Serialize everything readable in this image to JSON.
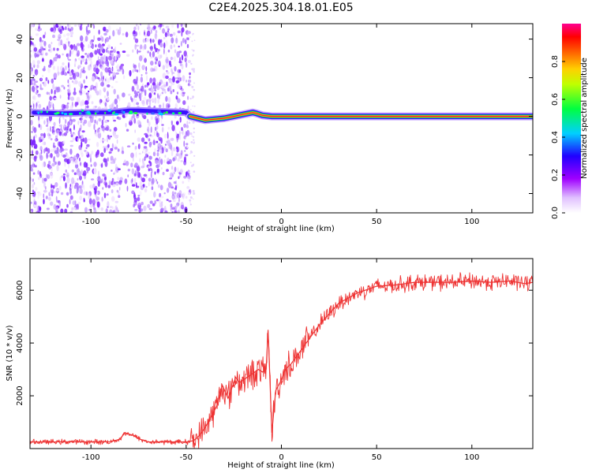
{
  "chart_data": [
    {
      "type": "heatmap",
      "title": "C2E4.2025.304.18.01.E05",
      "xlabel": "Height of straight line (km)",
      "ylabel": "Frequency (Hz)",
      "xlim": [
        -132,
        132
      ],
      "ylim": [
        -50,
        48
      ],
      "xticks": [
        -100,
        -50,
        0,
        50,
        100
      ],
      "yticks": [
        -40,
        -20,
        0,
        20,
        40
      ],
      "colorbar": {
        "label": "Normalized spectral amplitude",
        "range": [
          0,
          1
        ],
        "ticks": [
          0.0,
          0.2,
          0.4,
          0.6,
          0.8
        ],
        "tick_labels": [
          "0.0",
          "0.2",
          "0.4",
          "0.6",
          "0.8"
        ],
        "colormap": [
          "#ffffff",
          "#a000ff",
          "#2000ff",
          "#00ffff",
          "#00ff00",
          "#ffff00",
          "#ff8000",
          "#ff0000",
          "#ff00a0"
        ]
      },
      "noise_region": {
        "x_start": -132,
        "x_end": -48,
        "description": "scattered noise"
      },
      "ridge": [
        {
          "x": -130,
          "f": 2
        },
        {
          "x": -115,
          "f": 1.5
        },
        {
          "x": -100,
          "f": 2
        },
        {
          "x": -90,
          "f": 2
        },
        {
          "x": -80,
          "f": 3
        },
        {
          "x": -75,
          "f": 3
        },
        {
          "x": -50,
          "f": 2
        },
        {
          "x": -48,
          "f": 0
        },
        {
          "x": -44,
          "f": -1
        },
        {
          "x": -40,
          "f": -2
        },
        {
          "x": -35,
          "f": -1.5
        },
        {
          "x": -30,
          "f": -1
        },
        {
          "x": -25,
          "f": 0
        },
        {
          "x": -20,
          "f": 1
        },
        {
          "x": -15,
          "f": 2
        },
        {
          "x": -13,
          "f": 1.5
        },
        {
          "x": -10,
          "f": 0.5
        },
        {
          "x": -5,
          "f": 0
        },
        {
          "x": 0,
          "f": 0
        },
        {
          "x": 50,
          "f": 0
        },
        {
          "x": 100,
          "f": 0
        },
        {
          "x": 132,
          "f": 0
        }
      ]
    },
    {
      "type": "line",
      "xlabel": "Height of straight line (km)",
      "ylabel": "SNR (10 * v/v)",
      "xlim": [
        -132,
        132
      ],
      "ylim": [
        0,
        7200
      ],
      "xticks": [
        -100,
        -50,
        0,
        50,
        100
      ],
      "yticks": [
        2000,
        4000,
        6000
      ],
      "color": "#ee3333",
      "series": [
        {
          "name": "SNR",
          "x": [
            -132,
            -120,
            -110,
            -100,
            -90,
            -85,
            -82,
            -78,
            -74,
            -70,
            -60,
            -50,
            -46,
            -43,
            -40,
            -37,
            -34,
            -31,
            -28,
            -26,
            -24,
            -22,
            -20,
            -18,
            -16,
            -14,
            -12,
            -10,
            -8,
            -7,
            -6,
            -5,
            -3,
            0,
            2,
            5,
            8,
            12,
            16,
            20,
            25,
            30,
            40,
            50,
            60,
            70,
            80,
            90,
            100,
            110,
            120,
            128,
            132
          ],
          "y": [
            250,
            250,
            260,
            250,
            260,
            350,
            600,
            500,
            350,
            250,
            250,
            250,
            300,
            500,
            800,
            1200,
            1600,
            2400,
            1900,
            2300,
            2700,
            2500,
            2600,
            2700,
            2800,
            2900,
            3000,
            2900,
            3000,
            4500,
            2600,
            600,
            2200,
            2600,
            3000,
            3200,
            3500,
            3900,
            4300,
            4700,
            5100,
            5500,
            5900,
            6150,
            6200,
            6300,
            6300,
            6300,
            6350,
            6300,
            6350,
            6250,
            6300
          ]
        }
      ]
    }
  ]
}
